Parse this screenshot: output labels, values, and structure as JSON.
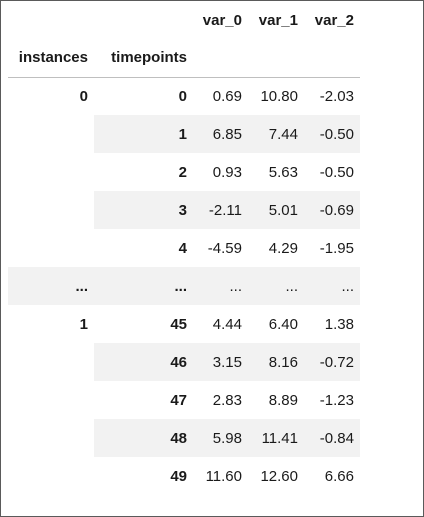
{
  "columns": [
    "var_0",
    "var_1",
    "var_2"
  ],
  "index_names": [
    "instances",
    "timepoints"
  ],
  "rows": [
    {
      "instance": "0",
      "timepoint": "0",
      "values": [
        "0.69",
        "10.80",
        "-2.03"
      ]
    },
    {
      "instance": "",
      "timepoint": "1",
      "values": [
        "6.85",
        "7.44",
        "-0.50"
      ]
    },
    {
      "instance": "",
      "timepoint": "2",
      "values": [
        "0.93",
        "5.63",
        "-0.50"
      ]
    },
    {
      "instance": "",
      "timepoint": "3",
      "values": [
        "-2.11",
        "5.01",
        "-0.69"
      ]
    },
    {
      "instance": "",
      "timepoint": "4",
      "values": [
        "-4.59",
        "4.29",
        "-1.95"
      ]
    },
    {
      "instance": "...",
      "timepoint": "...",
      "values": [
        "...",
        "...",
        "..."
      ]
    },
    {
      "instance": "1",
      "timepoint": "45",
      "values": [
        "4.44",
        "6.40",
        "1.38"
      ]
    },
    {
      "instance": "",
      "timepoint": "46",
      "values": [
        "3.15",
        "8.16",
        "-0.72"
      ]
    },
    {
      "instance": "",
      "timepoint": "47",
      "values": [
        "2.83",
        "8.89",
        "-1.23"
      ]
    },
    {
      "instance": "",
      "timepoint": "48",
      "values": [
        "5.98",
        "11.41",
        "-0.84"
      ]
    },
    {
      "instance": "",
      "timepoint": "49",
      "values": [
        "11.60",
        "12.60",
        "6.66"
      ]
    }
  ]
}
